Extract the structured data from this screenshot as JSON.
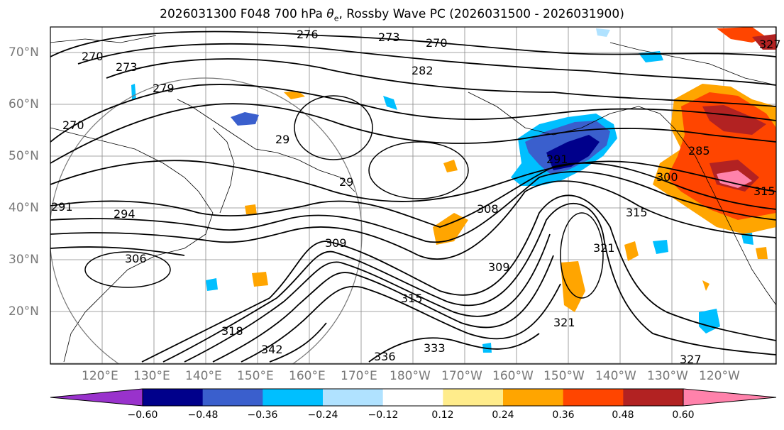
{
  "title_main": "2026031300 F048 700 hPa ",
  "title_symbol": "θ",
  "title_sub": "e",
  "title_rest": ", Rossby Wave PC (2026031500 - 2026031900)",
  "lat_labels": [
    "70°N",
    "60°N",
    "50°N",
    "40°N",
    "30°N",
    "20°N"
  ],
  "lon_labels": [
    "120°E",
    "130°E",
    "140°E",
    "150°E",
    "160°E",
    "170°E",
    "180°W",
    "170°W",
    "160°W",
    "150°W",
    "140°W",
    "130°W",
    "120°W"
  ],
  "contour_labels": [
    "276",
    "273",
    "270",
    "270",
    "273",
    "279",
    "282",
    "270",
    "291",
    "29",
    "29",
    "294",
    "306",
    "309",
    "308",
    "315",
    "309",
    "315",
    "318",
    "342",
    "336",
    "333",
    "321",
    "327",
    "285",
    "300",
    "315",
    "321",
    "327",
    "291"
  ],
  "colorbar": {
    "ticks": [
      "−0.60",
      "−0.48",
      "−0.36",
      "−0.24",
      "−0.12",
      "0.12",
      "0.24",
      "0.36",
      "0.48",
      "0.60"
    ],
    "colors": [
      "#9932cc",
      "#00008b",
      "#3a5fcd",
      "#00bfff",
      "#b0e2ff",
      "#ffffff",
      "#ffec8b",
      "#ffa500",
      "#ff4500",
      "#b22222",
      "#ff82ab"
    ]
  }
}
